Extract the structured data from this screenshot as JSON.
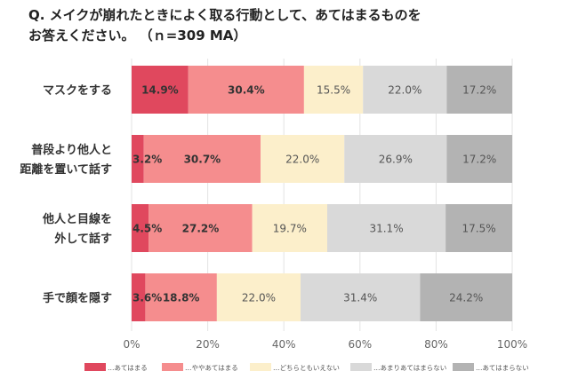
{
  "title": "Q. メイクが崩れたときによく取る行動として、あてはまるものを\nお答えください。 （ｎ=309 MA）",
  "chart_data": {
    "type": "bar",
    "orientation": "horizontal",
    "stacked": true,
    "normalized_100": true,
    "categories": [
      [
        "マスクをする"
      ],
      [
        "普段より他人と",
        "距離を置いて話す"
      ],
      [
        "他人と目線を",
        "外して話す"
      ],
      [
        "手で顔を隠す"
      ]
    ],
    "series": [
      {
        "name": "…あてはまる",
        "color": "#e0485e",
        "values": [
          14.9,
          3.2,
          4.5,
          3.6
        ],
        "label_color": "#333333",
        "label_bold": true
      },
      {
        "name": "…ややあてはまる",
        "color": "#f58d8e",
        "values": [
          30.4,
          30.7,
          27.2,
          18.8
        ],
        "label_color": "#333333",
        "label_bold": true
      },
      {
        "name": "…どちらともいえない",
        "color": "#fcefcb",
        "values": [
          15.5,
          22.0,
          19.7,
          22.0
        ],
        "label_color": "#555555",
        "label_bold": false
      },
      {
        "name": "…あまりあてはまらない",
        "color": "#d9d9d9",
        "values": [
          22.0,
          26.9,
          31.1,
          31.4
        ],
        "label_color": "#555555",
        "label_bold": false
      },
      {
        "name": "…あてはまらない",
        "color": "#b3b3b3",
        "values": [
          17.2,
          17.2,
          17.5,
          24.2
        ],
        "label_color": "#555555",
        "label_bold": false
      }
    ],
    "xlim": [
      0,
      100
    ],
    "x_ticks": [
      "0%",
      "20%",
      "40%",
      "60%",
      "80%",
      "100%"
    ],
    "grid": true,
    "legend_position": "bottom"
  }
}
